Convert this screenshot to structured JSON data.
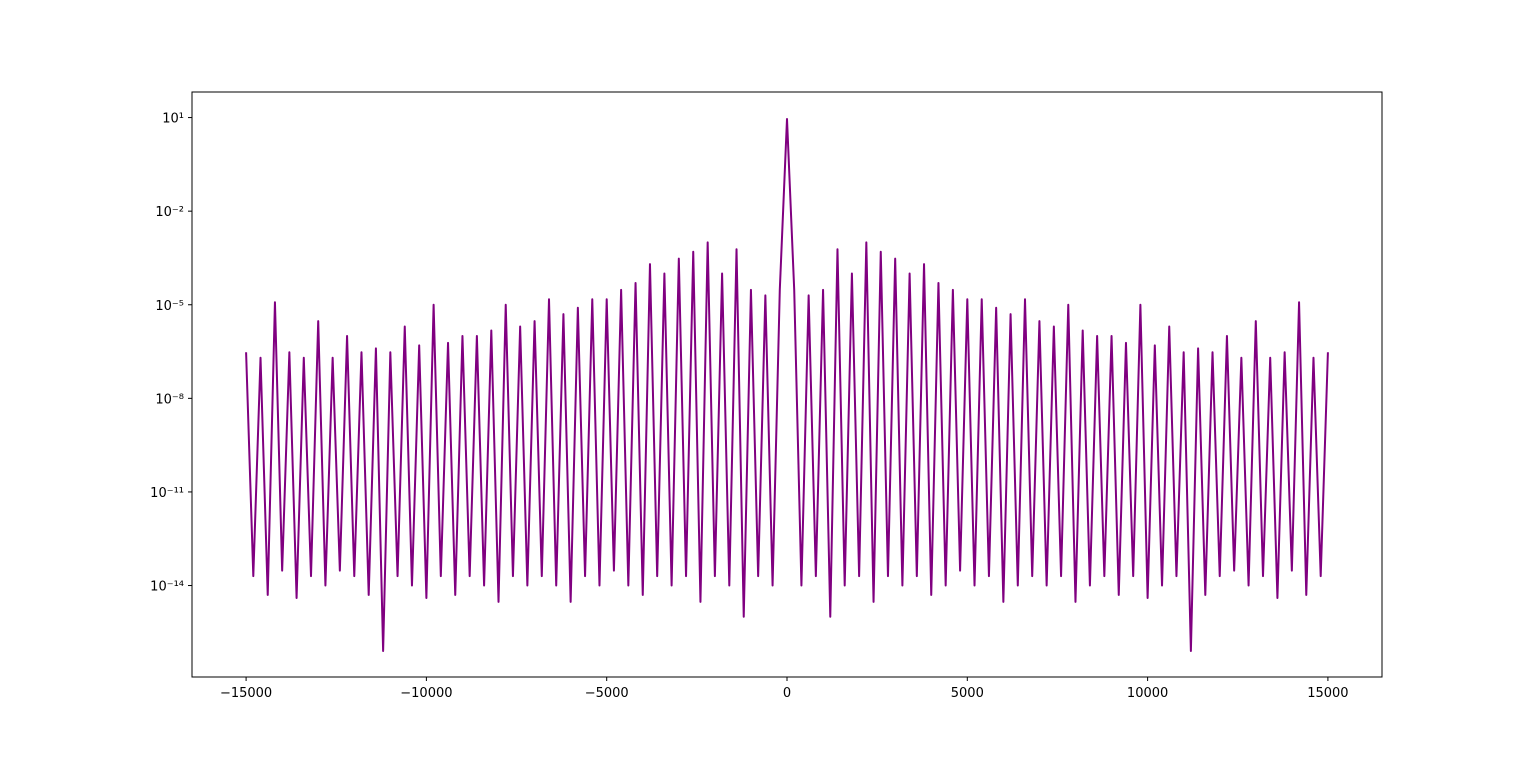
{
  "chart_data": {
    "type": "line",
    "color": "#800080",
    "yscale": "log",
    "grid": false,
    "xlim": [
      -16500,
      16500
    ],
    "ylim": [
      1.17e-17,
      66
    ],
    "xticks": [
      {
        "value": -15000,
        "label": "−15000"
      },
      {
        "value": -10000,
        "label": "−10000"
      },
      {
        "value": -5000,
        "label": "−5000"
      },
      0,
      5000,
      10000,
      15000
    ],
    "yticks": [
      {
        "value": 10,
        "label": "10¹"
      },
      {
        "value": 0.01,
        "label": "10⁻²"
      },
      {
        "value": 1e-05,
        "label": "10⁻⁵"
      },
      {
        "value": 1e-08,
        "label": "10⁻⁸"
      },
      {
        "value": 1e-11,
        "label": "10⁻¹¹"
      },
      {
        "value": 1e-14,
        "label": "10⁻¹⁴"
      }
    ],
    "x": [
      -15000,
      -14800,
      -14600,
      -14400,
      -14200,
      -14000,
      -13800,
      -13600,
      -13400,
      -13200,
      -13000,
      -12800,
      -12600,
      -12400,
      -12200,
      -12000,
      -11800,
      -11600,
      -11400,
      -11200,
      -11000,
      -10800,
      -10600,
      -10400,
      -10200,
      -10000,
      -9800,
      -9600,
      -9400,
      -9200,
      -9000,
      -8800,
      -8600,
      -8400,
      -8200,
      -8000,
      -7800,
      -7600,
      -7400,
      -7200,
      -7000,
      -6800,
      -6600,
      -6400,
      -6200,
      -6000,
      -5800,
      -5600,
      -5400,
      -5200,
      -5000,
      -4800,
      -4600,
      -4400,
      -4200,
      -4000,
      -3800,
      -3600,
      -3400,
      -3200,
      -3000,
      -2800,
      -2600,
      -2400,
      -2200,
      -2000,
      -1800,
      -1600,
      -1400,
      -1200,
      -1000,
      -800,
      -600,
      -400,
      -200,
      0,
      200,
      400,
      600,
      800,
      1000,
      1200,
      1400,
      1600,
      1800,
      2000,
      2200,
      2400,
      2600,
      2800,
      3000,
      3200,
      3400,
      3600,
      3800,
      4000,
      4200,
      4400,
      4600,
      4800,
      5000,
      5200,
      5400,
      5600,
      5800,
      6000,
      6200,
      6400,
      6600,
      6800,
      7000,
      7200,
      7400,
      7600,
      7800,
      8000,
      8200,
      8400,
      8600,
      8800,
      9000,
      9200,
      9400,
      9600,
      9800,
      10000,
      10200,
      10400,
      10600,
      10800,
      11000,
      11200,
      11400,
      11600,
      11800,
      12000,
      12200,
      12400,
      12600,
      12800,
      13000,
      13200,
      13400,
      13600,
      13800,
      14000,
      14200,
      14400,
      14600,
      14800,
      15000
    ],
    "values": [
      3e-07,
      2e-14,
      2e-07,
      5e-15,
      1.2e-05,
      3e-14,
      3e-07,
      4e-15,
      2e-07,
      2e-14,
      3e-06,
      1e-14,
      2e-07,
      3e-14,
      1e-06,
      2e-14,
      3e-07,
      5e-15,
      4e-07,
      8e-17,
      3e-07,
      2e-14,
      2e-06,
      1e-14,
      5e-07,
      4e-15,
      1e-05,
      2e-14,
      6e-07,
      5e-15,
      1e-06,
      2e-14,
      1e-06,
      1e-14,
      1.5e-06,
      3e-15,
      1e-05,
      2e-14,
      2e-06,
      1e-14,
      3e-06,
      2e-14,
      1.5e-05,
      1e-14,
      5e-06,
      3e-15,
      8e-06,
      2e-14,
      1.5e-05,
      1e-14,
      1.5e-05,
      3e-14,
      3e-05,
      1e-14,
      5e-05,
      5e-15,
      0.0002,
      2e-14,
      0.0001,
      1e-14,
      0.0003,
      2e-14,
      0.0005,
      3e-15,
      0.001,
      2e-14,
      0.0001,
      1e-14,
      0.0006,
      1e-15,
      3e-05,
      2e-14,
      2e-05,
      1e-14,
      3e-05,
      9,
      3e-05,
      1e-14,
      2e-05,
      2e-14,
      3e-05,
      1e-15,
      0.0006,
      1e-14,
      0.0001,
      2e-14,
      0.001,
      3e-15,
      0.0005,
      2e-14,
      0.0003,
      1e-14,
      0.0001,
      2e-14,
      0.0002,
      5e-15,
      5e-05,
      1e-14,
      3e-05,
      3e-14,
      1.5e-05,
      1e-14,
      1.5e-05,
      2e-14,
      8e-06,
      3e-15,
      5e-06,
      1e-14,
      1.5e-05,
      2e-14,
      3e-06,
      1e-14,
      2e-06,
      2e-14,
      1e-05,
      3e-15,
      1.5e-06,
      1e-14,
      1e-06,
      2e-14,
      1e-06,
      5e-15,
      6e-07,
      2e-14,
      1e-05,
      4e-15,
      5e-07,
      1e-14,
      2e-06,
      2e-14,
      3e-07,
      8e-17,
      4e-07,
      5e-15,
      3e-07,
      2e-14,
      1e-06,
      3e-14,
      2e-07,
      1e-14,
      3e-06,
      2e-14,
      2e-07,
      4e-15,
      3e-07,
      3e-14,
      1.2e-05,
      5e-15,
      2e-07,
      2e-14,
      3e-07
    ]
  }
}
